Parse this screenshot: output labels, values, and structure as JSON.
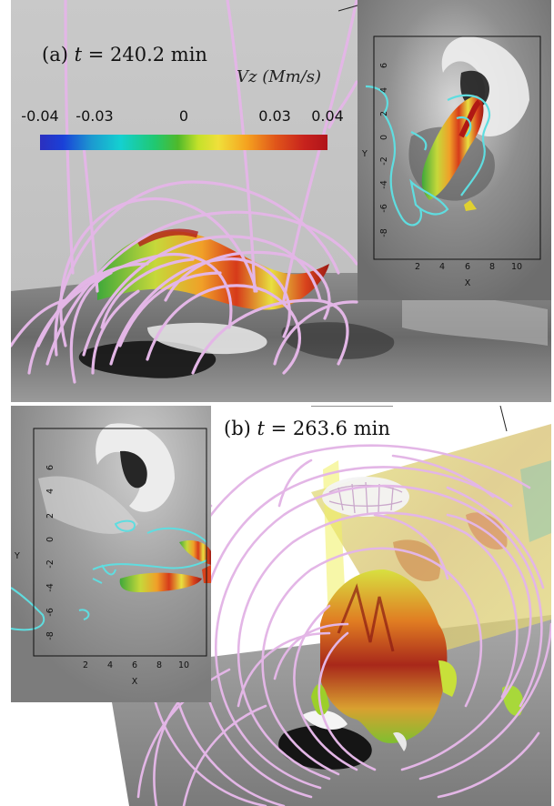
{
  "panel_a": {
    "label_prefix": "(a) ",
    "label_var": "t",
    "label_value": " = 240.2 min",
    "colorbar": {
      "title": "Vz (Mm/s)",
      "ticks": [
        "-0.04",
        "-0.03",
        "0",
        "0.03",
        "0.04"
      ]
    },
    "inset": {
      "y_ticks": [
        "6",
        "4",
        "2",
        "0",
        "-2",
        "-4",
        "-6",
        "-8"
      ],
      "x_ticks": [
        "2",
        "4",
        "6",
        "8",
        "10"
      ],
      "y_label": "Y",
      "x_label": "X"
    }
  },
  "panel_b": {
    "label_prefix": "(b) ",
    "label_var": "t",
    "label_value": " = 263.6 min",
    "inset": {
      "y_ticks": [
        "6",
        "4",
        "2",
        "0",
        "-2",
        "-4",
        "-6",
        "-8"
      ],
      "x_ticks": [
        "2",
        "4",
        "6",
        "8",
        "10"
      ],
      "y_label": "Y",
      "x_label": "X"
    }
  },
  "colors": {
    "field_lines": "#e3b6e6",
    "contour": "#5fdde0",
    "background": "#ffffff"
  }
}
